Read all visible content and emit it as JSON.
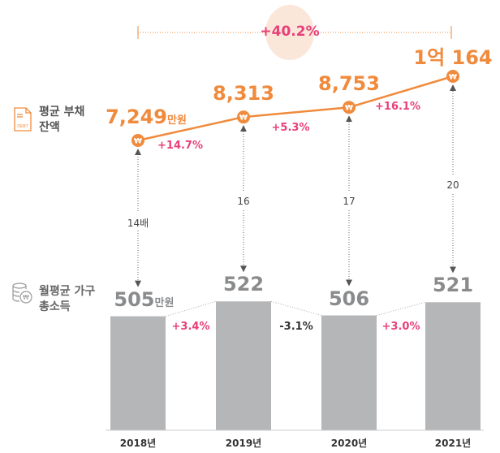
{
  "chart_data": {
    "type": "bar+line",
    "categories": [
      "2018년",
      "2019년",
      "2020년",
      "2021년"
    ],
    "debt": {
      "legend": "평균 부채 잔액",
      "values": [
        7249,
        8313,
        8753,
        10164
      ],
      "labels": [
        "7,249",
        "8,313",
        "8,753",
        "1억 164"
      ],
      "unit": "만원",
      "changes": [
        "+14.7%",
        "+5.3%",
        "+16.1%"
      ],
      "total_change": "+40.2%",
      "color": "#f08a3c"
    },
    "income": {
      "legend": "월평균 가구 총소득",
      "values": [
        505,
        522,
        506,
        521
      ],
      "labels": [
        "505",
        "522",
        "506",
        "521"
      ],
      "unit": "만원",
      "changes": [
        "+3.4%",
        "-3.1%",
        "+3.0%"
      ],
      "color": "#b5b6b8"
    },
    "ratio": {
      "labels": [
        "14배",
        "16",
        "17",
        "20"
      ]
    },
    "colors": {
      "positive": "#e8407a",
      "negative": "#333333",
      "total_bubble": "#fbe6da"
    },
    "icons": [
      "debt-document-icon",
      "coins-won-icon",
      "won-icon"
    ]
  }
}
